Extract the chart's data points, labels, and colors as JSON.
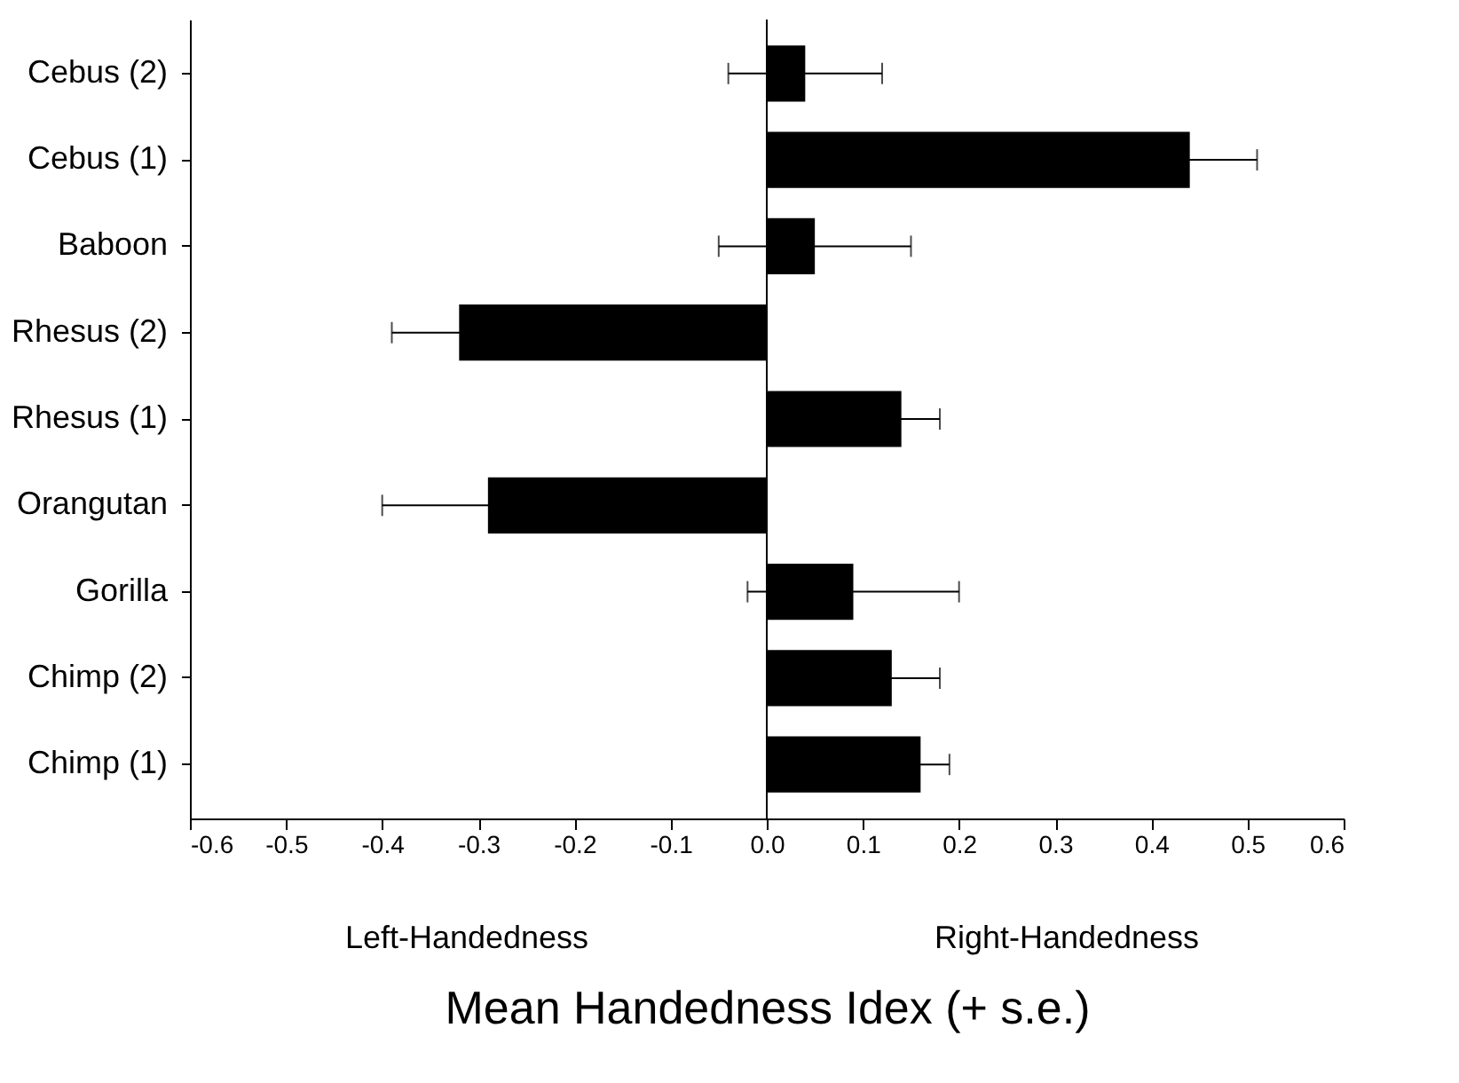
{
  "chart_data": {
    "type": "bar",
    "orientation": "horizontal",
    "xlabel": "Mean Handedness Idex (+ s.e.)",
    "categories": [
      "Cebus (2)",
      "Cebus (1)",
      "Baboon",
      "Rhesus (2)",
      "Rhesus (1)",
      "Orangutan",
      "Gorilla",
      "Chimp (2)",
      "Chimp (1)"
    ],
    "values": [
      0.04,
      0.44,
      0.05,
      -0.32,
      0.14,
      -0.29,
      0.09,
      0.13,
      0.16
    ],
    "errors": [
      0.08,
      0.07,
      0.1,
      0.07,
      0.04,
      0.11,
      0.11,
      0.05,
      0.03
    ],
    "color": "#000000",
    "xlim": [
      -0.6,
      0.6
    ],
    "xticks": [
      -0.6,
      -0.5,
      -0.4,
      -0.3,
      -0.2,
      -0.1,
      {
        "value": 0,
        "label": "0.0"
      },
      0.1,
      0.2,
      0.3,
      0.4,
      0.5,
      0.6
    ],
    "ref_lines": [
      {
        "axis": "x",
        "value": 0
      }
    ],
    "annotations": [
      "Left-Handedness",
      "Right-Handedness"
    ],
    "grid": false
  }
}
